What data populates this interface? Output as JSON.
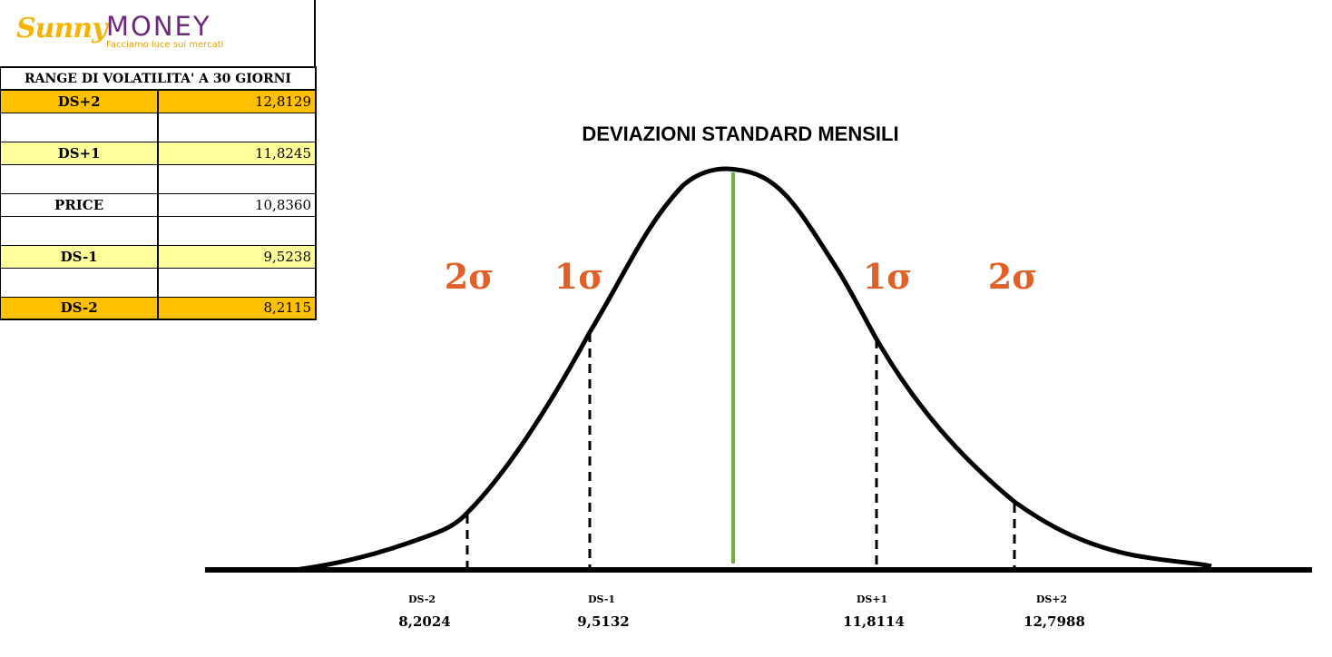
{
  "logo": {
    "brand_a": "Sunny",
    "brand_b": "MONEY",
    "tagline": "Facciamo luce sui mercati"
  },
  "table": {
    "title": "RANGE DI VOLATILITA' A 30 GIORNI",
    "rows": [
      {
        "label": "DS+2",
        "value": "12,8129"
      },
      {
        "label": "DS+1",
        "value": "11,8245"
      },
      {
        "label": "PRICE",
        "value": "10,8360"
      },
      {
        "label": "DS-1",
        "value": "9,5238"
      },
      {
        "label": "DS-2",
        "value": "8,2115"
      }
    ]
  },
  "chart_data": {
    "type": "line",
    "title": "DEVIAZIONI STANDARD MENSILI",
    "sigma_labels": [
      "2σ",
      "1σ",
      "1σ",
      "2σ"
    ],
    "markers": [
      {
        "label": "DS-2",
        "value": "8,2024"
      },
      {
        "label": "DS-1",
        "value": "9,5132"
      },
      {
        "label": "DS+1",
        "value": "11,8114"
      },
      {
        "label": "DS+2",
        "value": "12,7988"
      }
    ],
    "colors": {
      "curve": "#000000",
      "mean_line": "#70ad47",
      "sigma": "#e06028"
    }
  }
}
